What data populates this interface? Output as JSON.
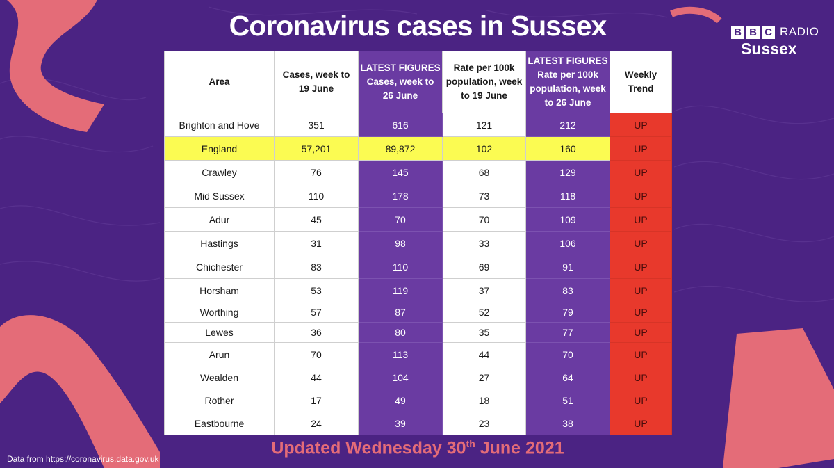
{
  "title": "Coronavirus cases in Sussex",
  "logo": {
    "letters": [
      "B",
      "B",
      "C"
    ],
    "radio": "RADIO",
    "station": "Sussex"
  },
  "colors": {
    "background": "#4b2383",
    "highlight_column": "#6a3ba2",
    "england_row": "#fbfb52",
    "trend_up": "#e8392c",
    "accent_pink": "#e46c78"
  },
  "table": {
    "headers": [
      {
        "lines": [
          "Area"
        ]
      },
      {
        "lines": [
          "Cases, week to",
          "19 June"
        ]
      },
      {
        "lines": [
          "LATEST FIGURES",
          "Cases, week to",
          "26 June"
        ]
      },
      {
        "lines": [
          "Rate per 100k",
          "population, week",
          "to 19 June"
        ]
      },
      {
        "lines": [
          "LATEST FIGURES",
          "Rate per 100k",
          "population, week",
          "to 26 June"
        ]
      },
      {
        "lines": [
          "Weekly",
          "Trend"
        ]
      }
    ],
    "rows": [
      [
        "Brighton and Hove",
        "351",
        "616",
        "121",
        "212",
        "UP"
      ],
      [
        "England",
        "57,201",
        "89,872",
        "102",
        "160",
        "UP"
      ],
      [
        "Crawley",
        "76",
        "145",
        "68",
        "129",
        "UP"
      ],
      [
        "Mid Sussex",
        "110",
        "178",
        "73",
        "118",
        "UP"
      ],
      [
        "Adur",
        "45",
        "70",
        "70",
        "109",
        "UP"
      ],
      [
        "Hastings",
        "31",
        "98",
        "33",
        "106",
        "UP"
      ],
      [
        "Chichester",
        "83",
        "110",
        "69",
        "91",
        "UP"
      ],
      [
        "Horsham",
        "53",
        "119",
        "37",
        "83",
        "UP"
      ],
      [
        "Worthing",
        "57",
        "87",
        "52",
        "79",
        "UP"
      ],
      [
        "Lewes",
        "36",
        "80",
        "35",
        "77",
        "UP"
      ],
      [
        "Arun",
        "70",
        "113",
        "44",
        "70",
        "UP"
      ],
      [
        "Wealden",
        "44",
        "104",
        "27",
        "64",
        "UP"
      ],
      [
        "Rother",
        "17",
        "49",
        "18",
        "51",
        "UP"
      ],
      [
        "Eastbourne",
        "24",
        "39",
        "23",
        "38",
        "UP"
      ]
    ]
  },
  "updated": {
    "prefix": "Updated Wednesday 30",
    "suffix": "th",
    "rest": " June 2021"
  },
  "source": "Data from https://coronavirus.data.gov.uk"
}
